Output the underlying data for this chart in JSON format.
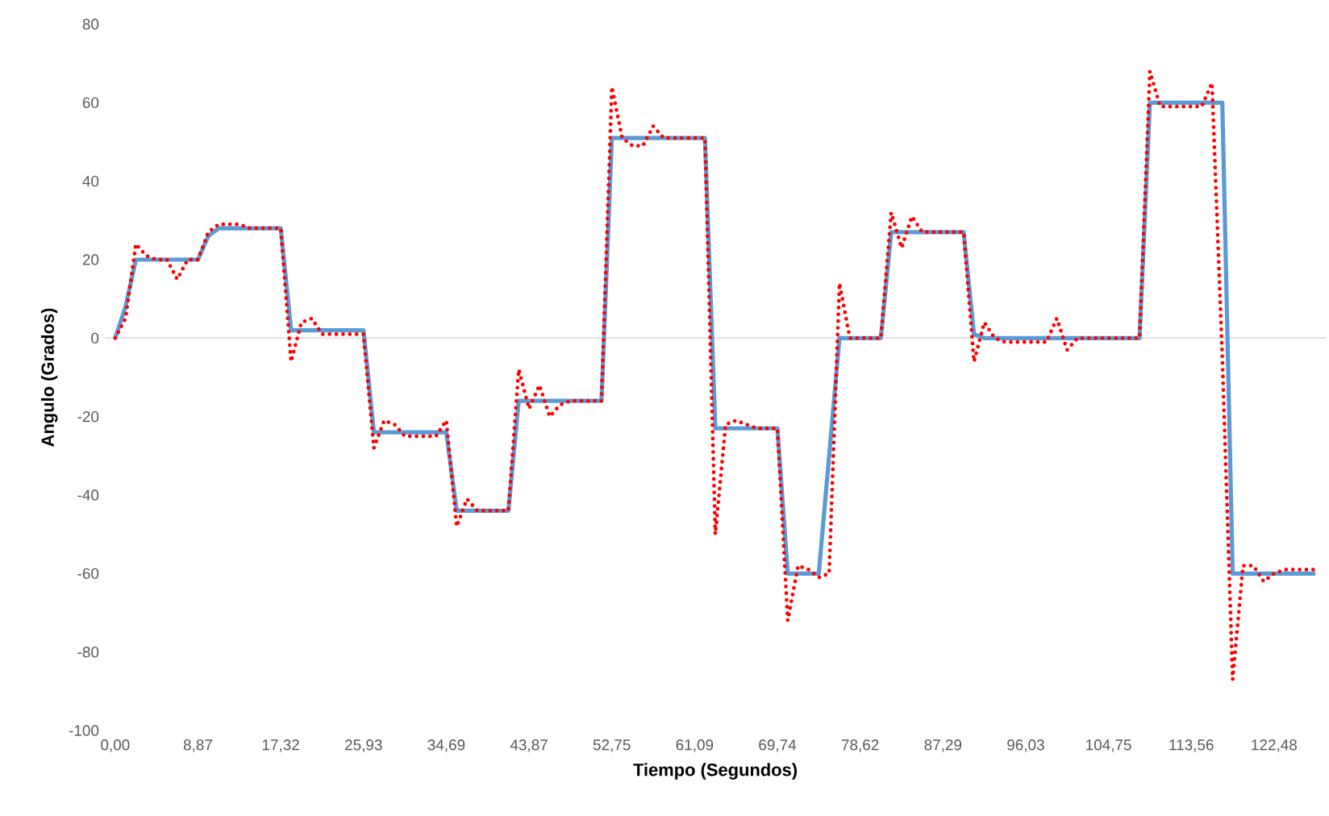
{
  "chart_data": {
    "type": "line",
    "xlabel": "Tiempo (Segundos)",
    "ylabel": "Angulo (Grados)",
    "categories": [
      "0,00",
      null,
      null,
      null,
      null,
      null,
      null,
      null,
      "8,87",
      null,
      null,
      null,
      null,
      null,
      null,
      null,
      "17,32",
      null,
      null,
      null,
      null,
      null,
      null,
      null,
      "25,93",
      null,
      null,
      null,
      null,
      null,
      null,
      null,
      "34,69",
      null,
      null,
      null,
      null,
      null,
      null,
      null,
      "43,87",
      null,
      null,
      null,
      null,
      null,
      null,
      null,
      "52,75",
      null,
      null,
      null,
      null,
      null,
      null,
      null,
      "61,09",
      null,
      null,
      null,
      null,
      null,
      null,
      null,
      "69,74",
      null,
      null,
      null,
      null,
      null,
      null,
      null,
      "78,62",
      null,
      null,
      null,
      null,
      null,
      null,
      null,
      "87,29",
      null,
      null,
      null,
      null,
      null,
      null,
      null,
      "96,03",
      null,
      null,
      null,
      null,
      null,
      null,
      null,
      "104,75",
      null,
      null,
      null,
      null,
      null,
      null,
      null,
      "113,56",
      null,
      null,
      null,
      null,
      null,
      null,
      null,
      "122,48",
      null,
      null,
      null,
      null
    ],
    "ylim": [
      -100,
      80
    ],
    "yticks": [
      -100,
      -80,
      -60,
      -40,
      -20,
      0,
      20,
      40,
      60,
      80
    ],
    "series": [
      {
        "color": "#5b9bd5",
        "line_style": "solid",
        "values": [
          0,
          8,
          20,
          20,
          20,
          20,
          20,
          20,
          20,
          26,
          28,
          28,
          28,
          28,
          28,
          28,
          28,
          2,
          2,
          2,
          2,
          2,
          2,
          2,
          2,
          -24,
          -24,
          -24,
          -24,
          -24,
          -24,
          -24,
          -24,
          -44,
          -44,
          -44,
          -44,
          -44,
          -44,
          -16,
          -16,
          -16,
          -16,
          -16,
          -16,
          -16,
          -16,
          -16,
          51,
          51,
          51,
          51,
          51,
          51,
          51,
          51,
          51,
          51,
          -23,
          -23,
          -23,
          -23,
          -23,
          -23,
          -23,
          -60,
          -60,
          -60,
          -60,
          -30,
          0,
          0,
          0,
          0,
          0,
          27,
          27,
          27,
          27,
          27,
          27,
          27,
          27,
          1,
          0,
          0,
          0,
          0,
          0,
          0,
          0,
          0,
          0,
          0,
          0,
          0,
          0,
          0,
          0,
          0,
          60,
          60,
          60,
          60,
          60,
          60,
          60,
          60,
          -60,
          -60,
          -60,
          -60,
          -60,
          -60,
          -60,
          -60,
          -60
        ]
      },
      {
        "color": "#ff0000",
        "line_style": "dotted",
        "values": [
          0,
          5,
          24,
          21,
          20,
          20,
          15,
          20,
          20,
          27,
          29,
          29,
          29,
          28,
          28,
          28,
          28,
          -6,
          4,
          5,
          1,
          1,
          1,
          1,
          1,
          -28,
          -21,
          -22,
          -25,
          -25,
          -25,
          -25,
          -21,
          -48,
          -41,
          -44,
          -44,
          -44,
          -44,
          -8,
          -18,
          -12,
          -20,
          -17,
          -16,
          -16,
          -16,
          -16,
          64,
          51,
          49,
          49,
          54,
          51,
          51,
          51,
          51,
          51,
          -50,
          -22,
          -21,
          -22,
          -23,
          -23,
          -23,
          -72,
          -58,
          -59,
          -61,
          -60,
          14,
          0,
          0,
          0,
          0,
          32,
          23,
          31,
          27,
          27,
          27,
          27,
          27,
          -6,
          4,
          0,
          -1,
          -1,
          -1,
          -1,
          -1,
          5,
          -3,
          0,
          0,
          0,
          0,
          0,
          0,
          0,
          68,
          59,
          59,
          59,
          59,
          59,
          65,
          -5,
          -87,
          -58,
          -58,
          -62,
          -60,
          -59,
          -59,
          -59,
          -59
        ]
      }
    ]
  }
}
